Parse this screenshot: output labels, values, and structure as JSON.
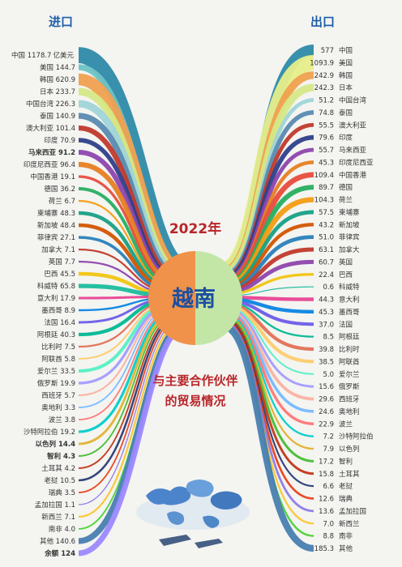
{
  "chart_data": {
    "type": "sankey",
    "import_label": "进口",
    "export_label": "出口",
    "year_label": "2022年",
    "center_label": "越南",
    "subtitle_line1": "与主要合作伙伴",
    "subtitle_line2": "的贸易情况",
    "unit": "亿美元",
    "imports": [
      {
        "name": "中国",
        "value": "1178.7",
        "color": "#2e8aa8"
      },
      {
        "name": "美国",
        "value": "144.7",
        "color": "#6ec4c4"
      },
      {
        "name": "韩国",
        "value": "620.9",
        "color": "#f0a050"
      },
      {
        "name": "日本",
        "value": "233.7",
        "color": "#d5e886"
      },
      {
        "name": "中国台湾",
        "value": "226.3",
        "color": "#9fd4d8"
      },
      {
        "name": "泰国",
        "value": "140.9",
        "color": "#5a8ab0"
      },
      {
        "name": "澳大利亚",
        "value": "101.4",
        "color": "#c0392b"
      },
      {
        "name": "印度",
        "value": "70.9",
        "color": "#2d3f8a"
      },
      {
        "name": "马来西亚",
        "value": "91.2",
        "color": "#8e44ad",
        "bold": true
      },
      {
        "name": "印度尼西亚",
        "value": "96.4",
        "color": "#e67e22"
      },
      {
        "name": "中国香港",
        "value": "19.1",
        "color": "#e74c3c"
      },
      {
        "name": "德国",
        "value": "36.2",
        "color": "#27ae60"
      },
      {
        "name": "荷兰",
        "value": "6.7",
        "color": "#f39c12"
      },
      {
        "name": "柬埔寨",
        "value": "48.3",
        "color": "#16a085"
      },
      {
        "name": "新加坡",
        "value": "48.4",
        "color": "#d35400"
      },
      {
        "name": "菲律宾",
        "value": "27.1",
        "color": "#2980b9"
      },
      {
        "name": "加拿大",
        "value": "7.1",
        "color": "#c0392b"
      },
      {
        "name": "英国",
        "value": "7.7",
        "color": "#8e44ad"
      },
      {
        "name": "巴西",
        "value": "45.5",
        "color": "#f1c40f"
      },
      {
        "name": "科威特",
        "value": "65.8",
        "color": "#1abc9c"
      },
      {
        "name": "意大利",
        "value": "17.9",
        "color": "#e84393"
      },
      {
        "name": "墨西哥",
        "value": "8.9",
        "color": "#0984e3"
      },
      {
        "name": "法国",
        "value": "16.4",
        "color": "#6c5ce7"
      },
      {
        "name": "阿根廷",
        "value": "40.3",
        "color": "#00b894"
      },
      {
        "name": "比利时",
        "value": "7.5",
        "color": "#e17055"
      },
      {
        "name": "阿联酋",
        "value": "5.8",
        "color": "#fdcb6e"
      },
      {
        "name": "爱尔兰",
        "value": "33.5",
        "color": "#55efc4"
      },
      {
        "name": "俄罗斯",
        "value": "19.9",
        "color": "#a29bfe"
      },
      {
        "name": "西班牙",
        "value": "5.7",
        "color": "#fab1a0"
      },
      {
        "name": "奥地利",
        "value": "3.3",
        "color": "#74b9ff"
      },
      {
        "name": "波兰",
        "value": "3.8",
        "color": "#ff7675"
      },
      {
        "name": "沙特阿拉伯",
        "value": "19.2",
        "color": "#00cec9"
      },
      {
        "name": "以色列",
        "value": "14.4",
        "color": "#e1b12c",
        "bold": true
      },
      {
        "name": "智利",
        "value": "4.3",
        "color": "#44bd32",
        "bold": true
      },
      {
        "name": "土耳其",
        "value": "4.2",
        "color": "#c23616"
      },
      {
        "name": "老挝",
        "value": "10.5",
        "color": "#273c75"
      },
      {
        "name": "瑞典",
        "value": "3.5",
        "color": "#e84118"
      },
      {
        "name": "孟加拉国",
        "value": "1.1",
        "color": "#8c7ae6"
      },
      {
        "name": "新西兰",
        "value": "7.1",
        "color": "#fbc531"
      },
      {
        "name": "南非",
        "value": "4.0",
        "color": "#4cd137"
      },
      {
        "name": "其他",
        "value": "140.6",
        "color": "#487eb0"
      },
      {
        "name": "余额",
        "value": "124",
        "color": "#9c88ff",
        "bold": true
      }
    ],
    "exports": [
      {
        "name": "中国",
        "value": "577",
        "color": "#2e8aa8"
      },
      {
        "name": "美国",
        "value": "1093.9",
        "color": "#e6ee8a"
      },
      {
        "name": "韩国",
        "value": "242.9",
        "color": "#f0a050"
      },
      {
        "name": "日本",
        "value": "242.3",
        "color": "#d5e886"
      },
      {
        "name": "中国台湾",
        "value": "51.2",
        "color": "#9fd4d8"
      },
      {
        "name": "泰国",
        "value": "74.8",
        "color": "#5a8ab0"
      },
      {
        "name": "澳大利亚",
        "value": "55.5",
        "color": "#c0392b"
      },
      {
        "name": "印度",
        "value": "79.6",
        "color": "#2d3f8a"
      },
      {
        "name": "马来西亚",
        "value": "55.7",
        "color": "#8e44ad"
      },
      {
        "name": "印度尼西亚",
        "value": "45.3",
        "color": "#e67e22"
      },
      {
        "name": "中国香港",
        "value": "109.4",
        "color": "#e74c3c"
      },
      {
        "name": "德国",
        "value": "89.7",
        "color": "#27ae60"
      },
      {
        "name": "荷兰",
        "value": "104.3",
        "color": "#f39c12"
      },
      {
        "name": "柬埔寨",
        "value": "57.5",
        "color": "#16a085"
      },
      {
        "name": "新加坡",
        "value": "43.2",
        "color": "#d35400"
      },
      {
        "name": "菲律宾",
        "value": "51.0",
        "color": "#2980b9"
      },
      {
        "name": "加拿大",
        "value": "63.1",
        "color": "#c0392b"
      },
      {
        "name": "英国",
        "value": "60.7",
        "color": "#8e44ad"
      },
      {
        "name": "巴西",
        "value": "22.4",
        "color": "#f1c40f"
      },
      {
        "name": "科威特",
        "value": "0.6",
        "color": "#1abc9c"
      },
      {
        "name": "意大利",
        "value": "44.3",
        "color": "#e84393"
      },
      {
        "name": "墨西哥",
        "value": "45.3",
        "color": "#0984e3"
      },
      {
        "name": "法国",
        "value": "37.0",
        "color": "#6c5ce7"
      },
      {
        "name": "阿根廷",
        "value": "8.5",
        "color": "#00b894"
      },
      {
        "name": "比利时",
        "value": "39.8",
        "color": "#e17055"
      },
      {
        "name": "阿联酋",
        "value": "38.5",
        "color": "#fdcb6e"
      },
      {
        "name": "爱尔兰",
        "value": "5.0",
        "color": "#55efc4"
      },
      {
        "name": "俄罗斯",
        "value": "15.6",
        "color": "#a29bfe"
      },
      {
        "name": "西班牙",
        "value": "29.6",
        "color": "#fab1a0"
      },
      {
        "name": "奥地利",
        "value": "24.6",
        "color": "#74b9ff"
      },
      {
        "name": "波兰",
        "value": "22.9",
        "color": "#ff7675"
      },
      {
        "name": "沙特阿拉伯",
        "value": "7.2",
        "color": "#00cec9"
      },
      {
        "name": "以色列",
        "value": "7.9",
        "color": "#e1b12c"
      },
      {
        "name": "智利",
        "value": "17.2",
        "color": "#44bd32"
      },
      {
        "name": "土耳其",
        "value": "15.8",
        "color": "#c23616"
      },
      {
        "name": "老挝",
        "value": "6.6",
        "color": "#273c75"
      },
      {
        "name": "瑞典",
        "value": "12.6",
        "color": "#e84118"
      },
      {
        "name": "孟加拉国",
        "value": "13.6",
        "color": "#8c7ae6"
      },
      {
        "name": "新西兰",
        "value": "7.0",
        "color": "#fbc531"
      },
      {
        "name": "南非",
        "value": "8.8",
        "color": "#4cd137"
      },
      {
        "name": "其他",
        "value": "185.3",
        "color": "#487eb0"
      }
    ]
  },
  "colors": {
    "background": "#f4f4f1",
    "header": "#1f5fa8",
    "title": "#b8262a",
    "circle_left": "#f0924a",
    "circle_right": "#c3e6a6"
  }
}
